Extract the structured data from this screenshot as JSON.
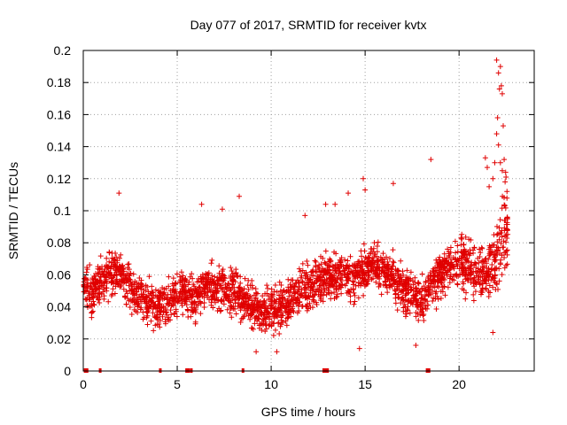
{
  "chart_data": {
    "type": "scatter",
    "title": "Day 077 of 2017, SRMTID for receiver kvtx",
    "xlabel": "GPS time / hours",
    "ylabel": "SRMTID / TECUs",
    "xlim": [
      0,
      24
    ],
    "ylim": [
      0,
      0.2
    ],
    "x_ticks": [
      0,
      5,
      10,
      15,
      20
    ],
    "x_tick_labels": [
      "0",
      "5",
      "10",
      "15",
      "20"
    ],
    "y_ticks": [
      0,
      0.02,
      0.04,
      0.06,
      0.08,
      0.1,
      0.12,
      0.14,
      0.16,
      0.18,
      0.2
    ],
    "y_tick_labels": [
      "0",
      "0.02",
      "0.04",
      "0.06",
      "0.08",
      "0.1",
      "0.12",
      "0.14",
      "0.16",
      "0.18",
      "0.2"
    ],
    "grid": true,
    "marker": "plus",
    "color": "#e00000",
    "trend_x": [
      0,
      0.5,
      1,
      1.5,
      2,
      2.5,
      3,
      3.5,
      4,
      4.5,
      5,
      5.5,
      6,
      6.5,
      7,
      7.5,
      8,
      8.5,
      9,
      9.5,
      10,
      10.5,
      11,
      11.5,
      12,
      12.5,
      13,
      13.5,
      14,
      14.5,
      15,
      15.5,
      16,
      16.5,
      17,
      17.5,
      18,
      18.5,
      19,
      19.5,
      20,
      20.5,
      21,
      21.5,
      22,
      22.5
    ],
    "trend_y": [
      0.056,
      0.047,
      0.058,
      0.062,
      0.06,
      0.052,
      0.046,
      0.043,
      0.04,
      0.043,
      0.05,
      0.047,
      0.046,
      0.055,
      0.05,
      0.052,
      0.05,
      0.047,
      0.04,
      0.036,
      0.037,
      0.04,
      0.044,
      0.048,
      0.052,
      0.055,
      0.058,
      0.06,
      0.058,
      0.057,
      0.064,
      0.066,
      0.063,
      0.058,
      0.053,
      0.047,
      0.043,
      0.052,
      0.062,
      0.066,
      0.068,
      0.066,
      0.06,
      0.06,
      0.07,
      0.09
    ],
    "outliers": [
      {
        "x": 1.9,
        "y": 0.111
      },
      {
        "x": 6.3,
        "y": 0.104
      },
      {
        "x": 7.4,
        "y": 0.101
      },
      {
        "x": 8.3,
        "y": 0.109
      },
      {
        "x": 12.9,
        "y": 0.104
      },
      {
        "x": 13.4,
        "y": 0.104
      },
      {
        "x": 14.1,
        "y": 0.111
      },
      {
        "x": 14.9,
        "y": 0.12
      },
      {
        "x": 15.0,
        "y": 0.113
      },
      {
        "x": 16.5,
        "y": 0.117
      },
      {
        "x": 18.5,
        "y": 0.132
      },
      {
        "x": 21.4,
        "y": 0.133
      },
      {
        "x": 21.5,
        "y": 0.127
      },
      {
        "x": 21.6,
        "y": 0.115
      },
      {
        "x": 21.8,
        "y": 0.12
      },
      {
        "x": 21.9,
        "y": 0.13
      },
      {
        "x": 22.0,
        "y": 0.148
      },
      {
        "x": 22.05,
        "y": 0.158
      },
      {
        "x": 22.1,
        "y": 0.141
      },
      {
        "x": 22.0,
        "y": 0.194
      },
      {
        "x": 22.1,
        "y": 0.186
      },
      {
        "x": 22.15,
        "y": 0.176
      },
      {
        "x": 22.2,
        "y": 0.19
      },
      {
        "x": 22.25,
        "y": 0.178
      },
      {
        "x": 22.3,
        "y": 0.173
      },
      {
        "x": 22.2,
        "y": 0.13
      },
      {
        "x": 22.3,
        "y": 0.125
      },
      {
        "x": 22.35,
        "y": 0.153
      },
      {
        "x": 22.4,
        "y": 0.132
      },
      {
        "x": 22.45,
        "y": 0.118
      },
      {
        "x": 22.5,
        "y": 0.121
      },
      {
        "x": 22.55,
        "y": 0.112
      },
      {
        "x": 11.8,
        "y": 0.097
      },
      {
        "x": 10.3,
        "y": 0.012
      },
      {
        "x": 9.2,
        "y": 0.012
      },
      {
        "x": 14.7,
        "y": 0.014
      },
      {
        "x": 17.7,
        "y": 0.016
      },
      {
        "x": 21.8,
        "y": 0.024
      }
    ],
    "zero_markers_x": [
      0.1,
      0.15,
      0.2,
      0.9,
      4.1,
      5.5,
      5.6,
      5.75,
      8.5,
      12.8,
      12.9,
      13.0,
      18.3,
      18.35,
      18.4
    ]
  }
}
